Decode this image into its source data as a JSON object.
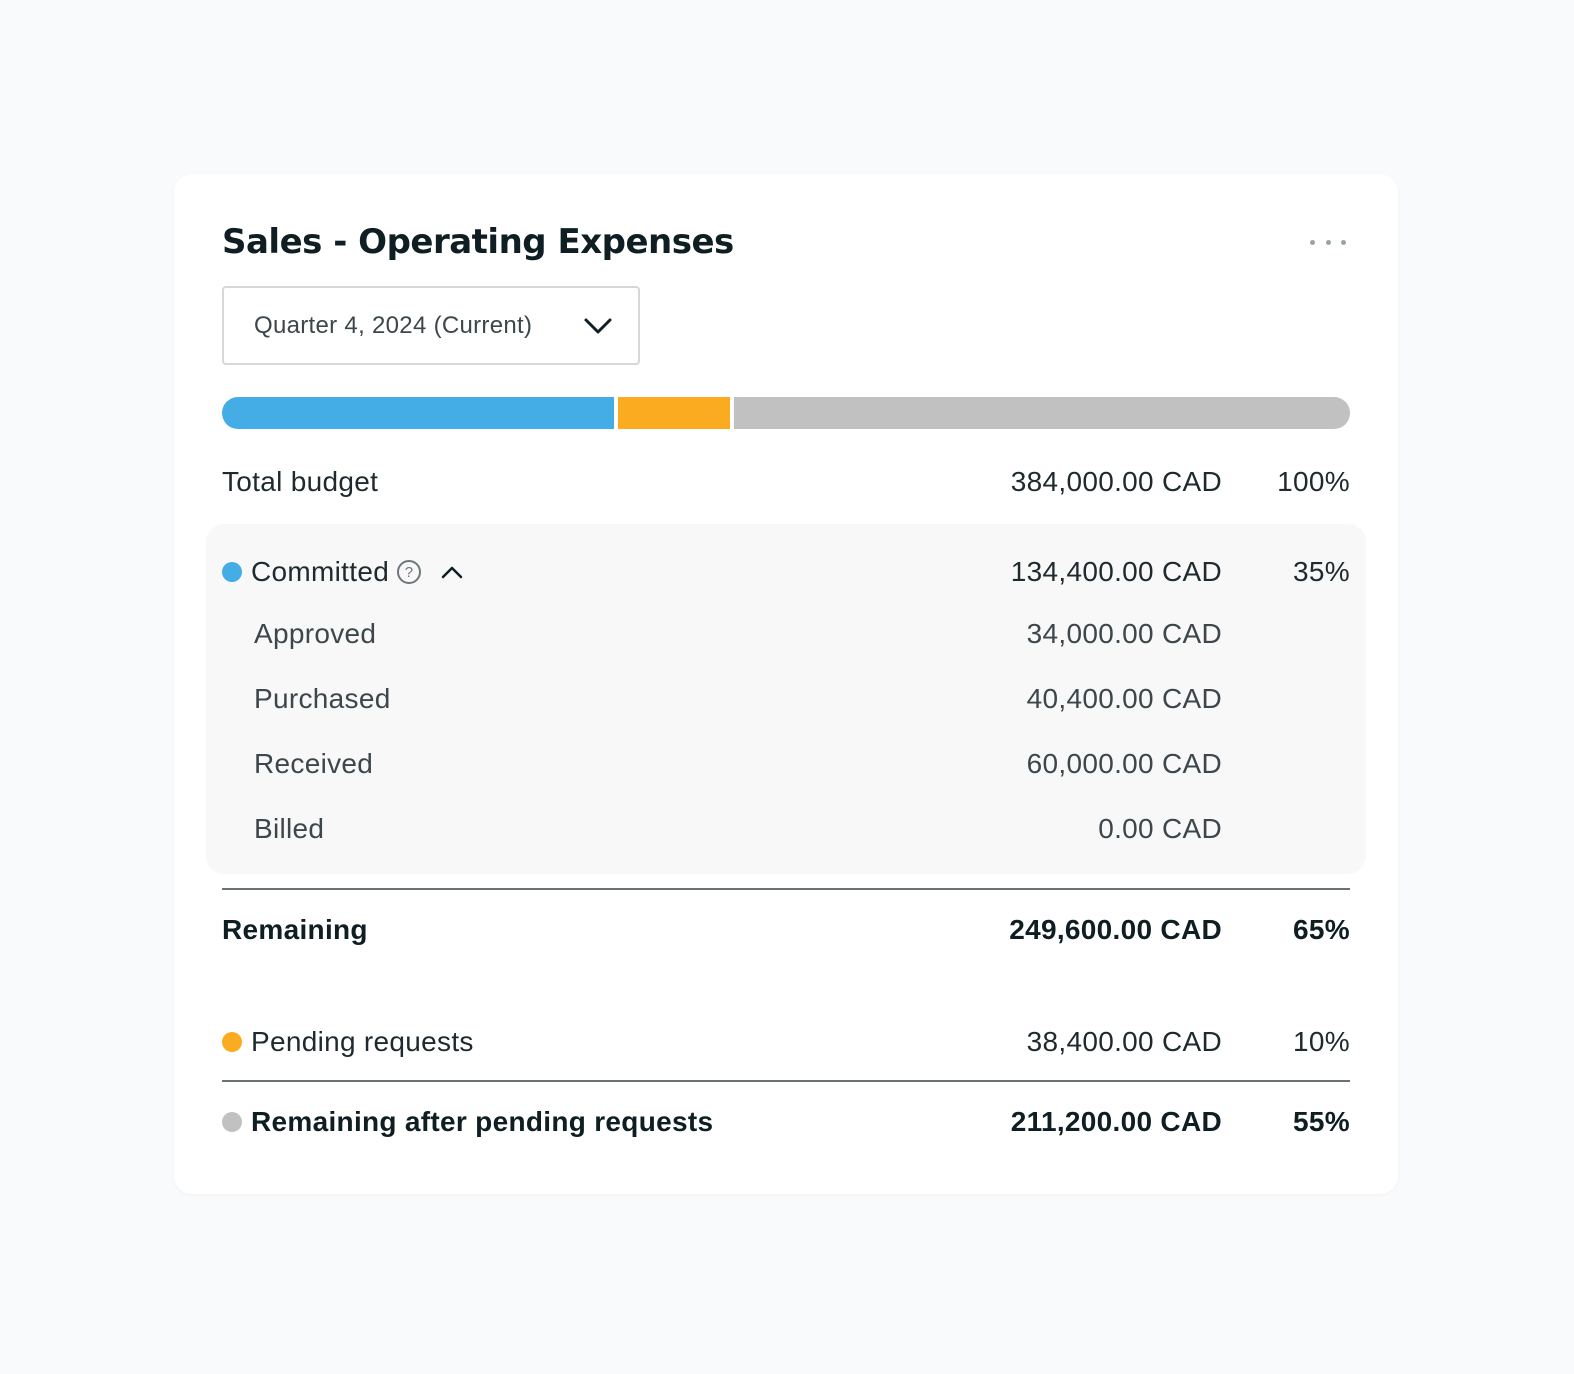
{
  "card": {
    "title": "Sales - Operating Expenses",
    "more_icon": "more-horizontal-icon"
  },
  "period_select": {
    "value": "Quarter 4, 2024 (Current)",
    "icon": "chevron-down-icon"
  },
  "budget_bar": {
    "segments": [
      {
        "name": "Committed",
        "percent": 35,
        "color": "#45ade6"
      },
      {
        "name": "Pending requests",
        "percent": 10,
        "color": "#fbab1f"
      },
      {
        "name": "Remaining after pending requests",
        "percent": 55,
        "color": "#c1c1c1"
      }
    ]
  },
  "total_budget": {
    "label": "Total budget",
    "amount": "384,000.00 CAD",
    "percent": "100%"
  },
  "committed": {
    "label": "Committed",
    "amount": "134,400.00 CAD",
    "percent": "35%",
    "color": "#45ade6",
    "help_icon": "help-circle-icon",
    "toggle_icon": "chevron-up-icon",
    "help_glyph": "?",
    "breakdown": [
      {
        "label": "Approved",
        "amount": "34,000.00 CAD"
      },
      {
        "label": "Purchased",
        "amount": "40,400.00 CAD"
      },
      {
        "label": "Received",
        "amount": "60,000.00 CAD"
      },
      {
        "label": "Billed",
        "amount": "0.00 CAD"
      }
    ]
  },
  "remaining": {
    "label": "Remaining",
    "amount": "249,600.00 CAD",
    "percent": "65%"
  },
  "pending": {
    "label": "Pending requests",
    "amount": "38,400.00 CAD",
    "percent": "10%",
    "color": "#fbab1f"
  },
  "remaining_after": {
    "label": "Remaining after pending requests",
    "amount": "211,200.00 CAD",
    "percent": "55%",
    "color": "#c1c1c1"
  }
}
